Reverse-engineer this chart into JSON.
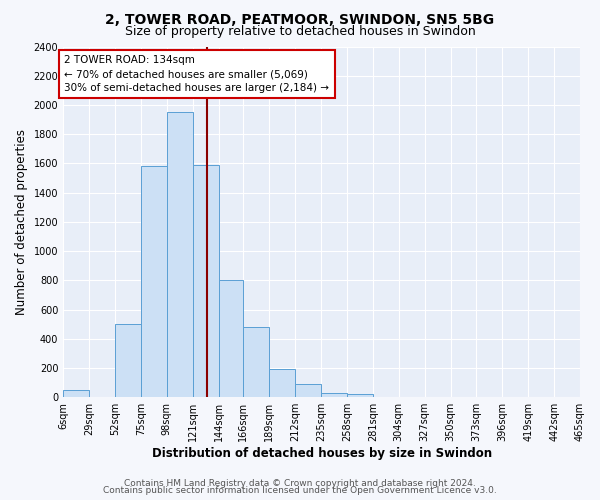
{
  "title": "2, TOWER ROAD, PEATMOOR, SWINDON, SN5 5BG",
  "subtitle": "Size of property relative to detached houses in Swindon",
  "xlabel": "Distribution of detached houses by size in Swindon",
  "ylabel": "Number of detached properties",
  "bin_edges": [
    6,
    29,
    52,
    75,
    98,
    121,
    144,
    166,
    189,
    212,
    235,
    258,
    281,
    304,
    327,
    350,
    373,
    396,
    419,
    442,
    465
  ],
  "bin_heights": [
    50,
    0,
    500,
    1580,
    1950,
    1590,
    800,
    480,
    190,
    90,
    30,
    25,
    0,
    0,
    0,
    0,
    0,
    0,
    0,
    0
  ],
  "bar_facecolor": "#cce0f5",
  "bar_edgecolor": "#5a9fd4",
  "vline_x": 134,
  "vline_color": "#8b0000",
  "annotation_text": "2 TOWER ROAD: 134sqm\n← 70% of detached houses are smaller (5,069)\n30% of semi-detached houses are larger (2,184) →",
  "annotation_box_edgecolor": "#cc0000",
  "annotation_box_facecolor": "#ffffff",
  "tick_labels": [
    "6sqm",
    "29sqm",
    "52sqm",
    "75sqm",
    "98sqm",
    "121sqm",
    "144sqm",
    "166sqm",
    "189sqm",
    "212sqm",
    "235sqm",
    "258sqm",
    "281sqm",
    "304sqm",
    "327sqm",
    "350sqm",
    "373sqm",
    "396sqm",
    "419sqm",
    "442sqm",
    "465sqm"
  ],
  "ylim": [
    0,
    2400
  ],
  "yticks": [
    0,
    200,
    400,
    600,
    800,
    1000,
    1200,
    1400,
    1600,
    1800,
    2000,
    2200,
    2400
  ],
  "footer_line1": "Contains HM Land Registry data © Crown copyright and database right 2024.",
  "footer_line2": "Contains public sector information licensed under the Open Government Licence v3.0.",
  "plot_bg_color": "#e8eef8",
  "fig_bg_color": "#f5f7fc",
  "grid_color": "#ffffff",
  "title_fontsize": 10,
  "subtitle_fontsize": 9,
  "axis_label_fontsize": 8.5,
  "tick_fontsize": 7,
  "footer_fontsize": 6.5,
  "annotation_fontsize": 7.5
}
